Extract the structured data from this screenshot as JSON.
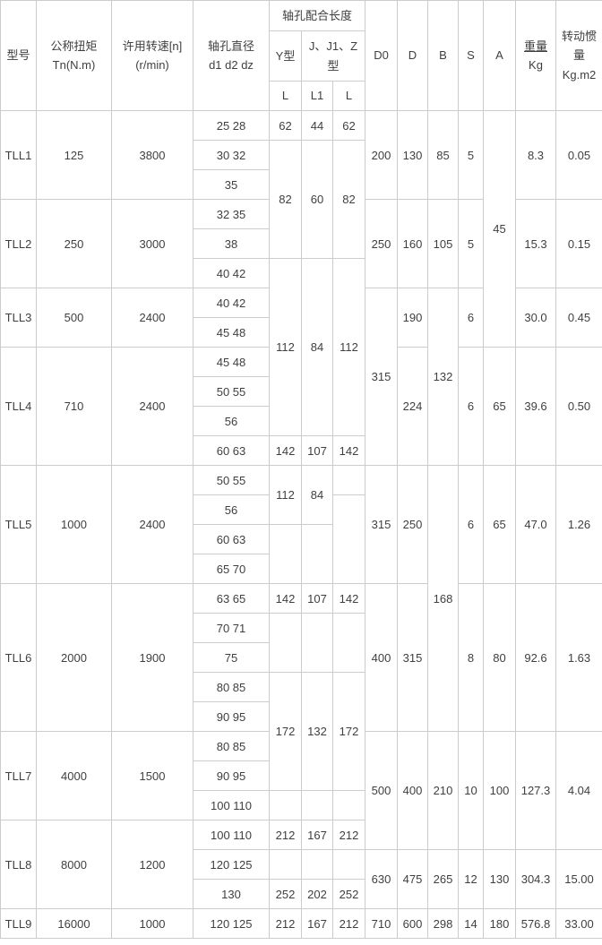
{
  "table": {
    "header": {
      "model": "型号",
      "torque_l1": "公称扭矩",
      "torque_l2": "Tn(N.m)",
      "speed_l1": "许用转速[n]",
      "speed_l2": "(r/min)",
      "bore_l1": "轴孔直径",
      "bore_l2": "d1 d2 dz",
      "fit_length_group": "轴孔配合长度",
      "y_type": "Y型",
      "jjz_type_l1": "J、J1、Z",
      "jjz_type_l2": "型",
      "col_L_y": "L",
      "col_L1": "L1",
      "col_L_z": "L",
      "d0": "D0",
      "d": "D",
      "b": "B",
      "s": "S",
      "a": "A",
      "weight_l1": "重量",
      "weight_l2": "Kg",
      "inertia_l1": "转动惯量",
      "inertia_l2": "Kg.m2"
    },
    "rows": [
      [
        {
          "t": "TLL1",
          "rs": 3,
          "n": "model-cell"
        },
        {
          "t": "125",
          "rs": 3
        },
        {
          "t": "3800",
          "rs": 3
        },
        {
          "t": "25 28"
        },
        {
          "t": "62"
        },
        {
          "t": "44"
        },
        {
          "t": "62"
        },
        {
          "t": "200",
          "rs": 3
        },
        {
          "t": "130",
          "rs": 3
        },
        {
          "t": "85",
          "rs": 3
        },
        {
          "t": "5",
          "rs": 3
        },
        {
          "t": "45",
          "rs": 8
        },
        {
          "t": "8.3",
          "rs": 3
        },
        {
          "t": "0.05",
          "rs": 3
        }
      ],
      [
        {
          "t": "30 32"
        },
        {
          "t": "82",
          "rs": 4
        },
        {
          "t": "60",
          "rs": 4
        },
        {
          "t": "82",
          "rs": 4
        }
      ],
      [
        {
          "t": "35"
        }
      ],
      [
        {
          "t": "TLL2",
          "rs": 3,
          "n": "model-cell"
        },
        {
          "t": "250",
          "rs": 3
        },
        {
          "t": "3000",
          "rs": 3
        },
        {
          "t": "32 35"
        },
        {
          "t": "250",
          "rs": 3
        },
        {
          "t": "160",
          "rs": 3
        },
        {
          "t": "105",
          "rs": 3
        },
        {
          "t": "5",
          "rs": 3
        },
        {
          "t": "15.3",
          "rs": 3
        },
        {
          "t": "0.15",
          "rs": 3
        }
      ],
      [
        {
          "t": "38"
        }
      ],
      [
        {
          "t": "40 42"
        },
        {
          "t": "112",
          "rs": 6
        },
        {
          "t": "84",
          "rs": 6
        },
        {
          "t": "112",
          "rs": 6
        }
      ],
      [
        {
          "t": "TLL3",
          "rs": 2,
          "n": "model-cell"
        },
        {
          "t": "500",
          "rs": 2
        },
        {
          "t": "2400",
          "rs": 2
        },
        {
          "t": "40 42"
        },
        {
          "t": "315",
          "rs": 6
        },
        {
          "t": "190",
          "rs": 2
        },
        {
          "t": "132",
          "rs": 6
        },
        {
          "t": "6",
          "rs": 2
        },
        {
          "t": "30.0",
          "rs": 2
        },
        {
          "t": "0.45",
          "rs": 2
        }
      ],
      [
        {
          "t": "45 48"
        }
      ],
      [
        {
          "t": "TLL4",
          "rs": 4,
          "n": "model-cell"
        },
        {
          "t": "710",
          "rs": 4
        },
        {
          "t": "2400",
          "rs": 4
        },
        {
          "t": "45 48"
        },
        {
          "t": "224",
          "rs": 4
        },
        {
          "t": "6",
          "rs": 4
        },
        {
          "t": "65",
          "rs": 4
        },
        {
          "t": "39.6",
          "rs": 4
        },
        {
          "t": "0.50",
          "rs": 4
        }
      ],
      [
        {
          "t": "50 55"
        }
      ],
      [
        {
          "t": "56"
        }
      ],
      [
        {
          "t": "60 63"
        },
        {
          "t": "142"
        },
        {
          "t": "107"
        },
        {
          "t": "142"
        }
      ],
      [
        {
          "t": "TLL5",
          "rs": 4,
          "n": "model-cell"
        },
        {
          "t": "1000",
          "rs": 4
        },
        {
          "t": "2400",
          "rs": 4
        },
        {
          "t": "50 55"
        },
        {
          "t": "112",
          "rs": 2
        },
        {
          "t": "84",
          "rs": 2
        },
        {
          "t": ""
        },
        {
          "t": "315",
          "rs": 4
        },
        {
          "t": "250",
          "rs": 4
        },
        {
          "t": "168",
          "rs": 9
        },
        {
          "t": "6",
          "rs": 4
        },
        {
          "t": "65",
          "rs": 4
        },
        {
          "t": "47.0",
          "rs": 4
        },
        {
          "t": "1.26",
          "rs": 4
        }
      ],
      [
        {
          "t": "56"
        },
        {
          "t": "",
          "rs": 3
        }
      ],
      [
        {
          "t": "60 63"
        },
        {
          "t": "",
          "rs": 2
        },
        {
          "t": "",
          "rs": 2
        }
      ],
      [
        {
          "t": "65 70"
        }
      ],
      [
        {
          "t": "TLL6",
          "rs": 5,
          "n": "model-cell"
        },
        {
          "t": "2000",
          "rs": 5
        },
        {
          "t": "1900",
          "rs": 5
        },
        {
          "t": "63 65"
        },
        {
          "t": "142"
        },
        {
          "t": "107"
        },
        {
          "t": "142"
        },
        {
          "t": "400",
          "rs": 5
        },
        {
          "t": "315",
          "rs": 5
        },
        {
          "t": "8",
          "rs": 5
        },
        {
          "t": "80",
          "rs": 5
        },
        {
          "t": "92.6",
          "rs": 5
        },
        {
          "t": "1.63",
          "rs": 5
        }
      ],
      [
        {
          "t": "70 71"
        },
        {
          "t": "",
          "rs": 2
        },
        {
          "t": "",
          "rs": 2
        },
        {
          "t": "",
          "rs": 2
        }
      ],
      [
        {
          "t": "75"
        }
      ],
      [
        {
          "t": "80 85"
        },
        {
          "t": "172",
          "rs": 4
        },
        {
          "t": "132",
          "rs": 4
        },
        {
          "t": "172",
          "rs": 4
        }
      ],
      [
        {
          "t": "90 95"
        }
      ],
      [
        {
          "t": "TLL7",
          "rs": 3,
          "n": "model-cell"
        },
        {
          "t": "4000",
          "rs": 3
        },
        {
          "t": "1500",
          "rs": 3
        },
        {
          "t": "80 85"
        },
        {
          "t": "500",
          "rs": 4
        },
        {
          "t": "400",
          "rs": 4
        },
        {
          "t": "210",
          "rs": 4
        },
        {
          "t": "10",
          "rs": 4
        },
        {
          "t": "100",
          "rs": 4
        },
        {
          "t": "127.3",
          "rs": 4
        },
        {
          "t": "4.04",
          "rs": 4
        }
      ],
      [
        {
          "t": "90 95"
        }
      ],
      [
        {
          "t": "100 110"
        },
        {
          "t": ""
        },
        {
          "t": ""
        },
        {
          "t": ""
        }
      ],
      [
        {
          "t": "TLL8",
          "rs": 3,
          "n": "model-cell"
        },
        {
          "t": "8000",
          "rs": 3
        },
        {
          "t": "1200",
          "rs": 3
        },
        {
          "t": "100 110"
        },
        {
          "t": "212"
        },
        {
          "t": "167"
        },
        {
          "t": "212"
        }
      ],
      [
        {
          "t": "120 125"
        },
        {
          "t": ""
        },
        {
          "t": ""
        },
        {
          "t": ""
        },
        {
          "t": "630",
          "rs": 2
        },
        {
          "t": "475",
          "rs": 2
        },
        {
          "t": "265",
          "rs": 2
        },
        {
          "t": "12",
          "rs": 2
        },
        {
          "t": "130",
          "rs": 2
        },
        {
          "t": "304.3",
          "rs": 2
        },
        {
          "t": "15.00",
          "rs": 2
        }
      ],
      [
        {
          "t": "130"
        },
        {
          "t": "252"
        },
        {
          "t": "202"
        },
        {
          "t": "252"
        }
      ],
      [
        {
          "t": "TLL9",
          "n": "model-cell"
        },
        {
          "t": "16000"
        },
        {
          "t": "1000"
        },
        {
          "t": "120 125"
        },
        {
          "t": "212"
        },
        {
          "t": "167"
        },
        {
          "t": "212"
        },
        {
          "t": "710"
        },
        {
          "t": "600"
        },
        {
          "t": "298"
        },
        {
          "t": "14"
        },
        {
          "t": "180"
        },
        {
          "t": "576.8"
        },
        {
          "t": "33.00"
        }
      ]
    ]
  }
}
